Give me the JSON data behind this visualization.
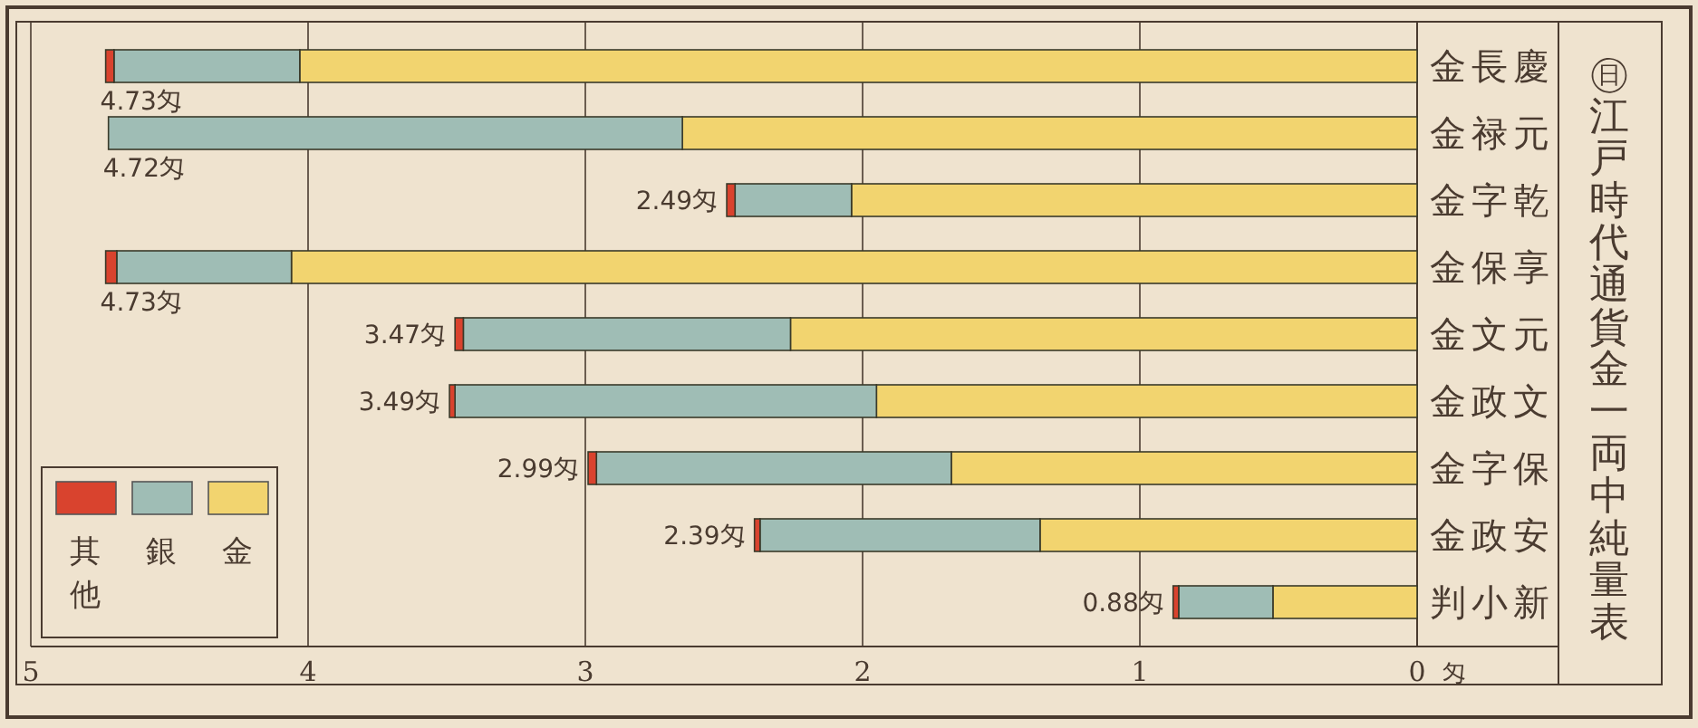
{
  "chart_data": {
    "type": "bar",
    "orientation": "horizontal",
    "stacked": true,
    "title": "㊐江戸時代通貨金一両中純量表",
    "xlabel": "匁",
    "categories": [
      "金長慶",
      "金禄元",
      "金字乾",
      "金保享",
      "金文元",
      "金政文",
      "金字保",
      "金政安",
      "判小新"
    ],
    "series": [
      {
        "name": "金",
        "color": "#f2d46f",
        "values": [
          4.03,
          2.65,
          2.04,
          4.06,
          2.26,
          1.95,
          1.68,
          1.36,
          0.52
        ]
      },
      {
        "name": "銀",
        "color": "#9fbdb5",
        "values": [
          0.67,
          2.07,
          0.42,
          0.63,
          1.18,
          1.52,
          1.28,
          1.01,
          0.34
        ]
      },
      {
        "name": "其他",
        "color": "#d9432e",
        "values": [
          0.03,
          0,
          0.03,
          0.04,
          0.03,
          0.02,
          0.03,
          0.02,
          0.02
        ]
      }
    ],
    "totals": [
      "4.73匁",
      "4.72匁",
      "2.49匁",
      "4.73匁",
      "3.47匁",
      "3.49匁",
      "2.99匁",
      "2.39匁",
      "0.88匁"
    ],
    "xlim": [
      5,
      0
    ],
    "xticks": [
      5,
      4,
      3,
      2,
      1,
      0
    ],
    "grid": "x",
    "legend": "bottom left"
  }
}
